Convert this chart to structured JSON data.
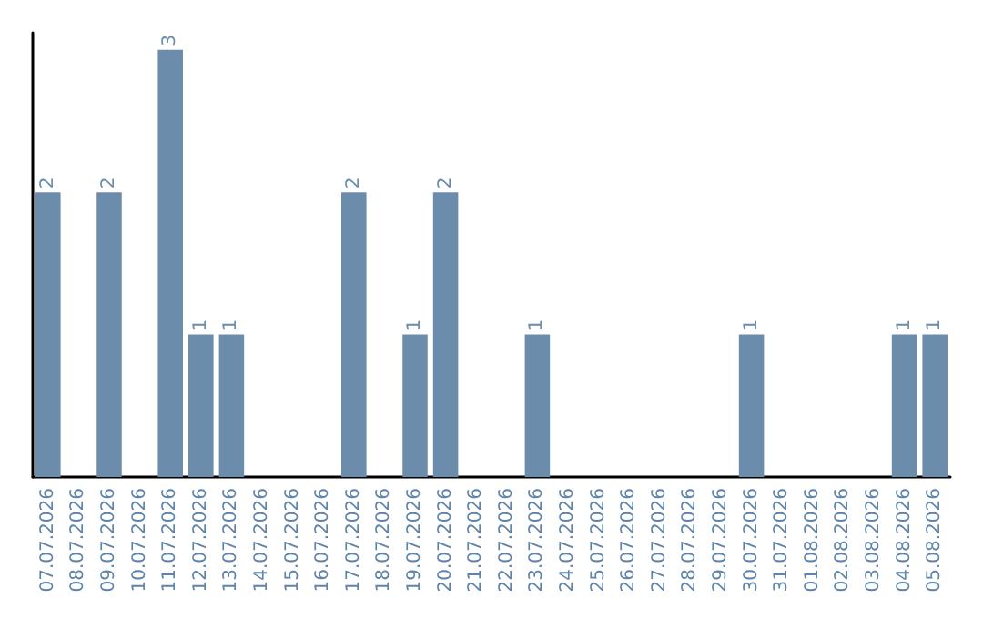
{
  "chart_data": {
    "type": "bar",
    "categories": [
      "07.07.2026",
      "08.07.2026",
      "09.07.2026",
      "10.07.2026",
      "11.07.2026",
      "12.07.2026",
      "13.07.2026",
      "14.07.2026",
      "15.07.2026",
      "16.07.2026",
      "17.07.2026",
      "18.07.2026",
      "19.07.2026",
      "20.07.2026",
      "21.07.2026",
      "22.07.2026",
      "23.07.2026",
      "24.07.2026",
      "25.07.2026",
      "26.07.2026",
      "27.07.2026",
      "28.07.2026",
      "29.07.2026",
      "30.07.2026",
      "31.07.2026",
      "01.08.2026",
      "02.08.2026",
      "03.08.2026",
      "04.08.2026",
      "05.08.2026"
    ],
    "values": [
      2,
      0,
      2,
      0,
      3,
      1,
      1,
      0,
      0,
      0,
      2,
      0,
      1,
      2,
      0,
      0,
      1,
      0,
      0,
      0,
      0,
      0,
      0,
      1,
      0,
      0,
      0,
      0,
      1,
      1
    ],
    "value_labels": [
      "2",
      null,
      "2",
      null,
      "3",
      "1",
      "1",
      null,
      null,
      null,
      "2",
      null,
      "1",
      "2",
      null,
      null,
      "1",
      null,
      null,
      null,
      null,
      null,
      null,
      "1",
      null,
      null,
      null,
      null,
      "1",
      "1"
    ],
    "color": "#6b8cab",
    "tick_labels": "x"
  }
}
